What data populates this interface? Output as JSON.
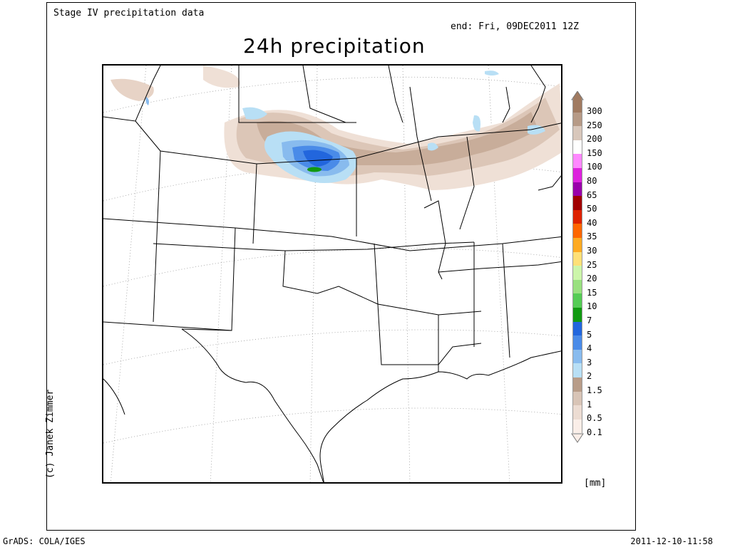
{
  "header": {
    "source": "Stage IV precipitation data",
    "end": "end: Fri, 09DEC2011 12Z",
    "title": "24h precipitation"
  },
  "credit": "(c) Janek Zimmer",
  "footer": {
    "left": "GrADS: COLA/IGES",
    "right": "2011-12-10-11:58"
  },
  "legend": {
    "unit": "[mm]",
    "levels": [
      {
        "label": "300",
        "color": "#a07a60"
      },
      {
        "label": "250",
        "color": "#b69a86"
      },
      {
        "label": "200",
        "color": "#d8c7bb"
      },
      {
        "label": "150",
        "color": "#ffffff"
      },
      {
        "label": "100",
        "color": "#ff88ff"
      },
      {
        "label": "80",
        "color": "#dd22dd"
      },
      {
        "label": "65",
        "color": "#9900aa"
      },
      {
        "label": "50",
        "color": "#a00000"
      },
      {
        "label": "40",
        "color": "#dd2200"
      },
      {
        "label": "35",
        "color": "#ff6600"
      },
      {
        "label": "30",
        "color": "#ffaa22"
      },
      {
        "label": "25",
        "color": "#ffe077"
      },
      {
        "label": "20",
        "color": "#ccf5aa"
      },
      {
        "label": "15",
        "color": "#99e07f"
      },
      {
        "label": "10",
        "color": "#55cc55"
      },
      {
        "label": "7",
        "color": "#119911"
      },
      {
        "label": "5",
        "color": "#2266dd"
      },
      {
        "label": "4",
        "color": "#4a8be8"
      },
      {
        "label": "3",
        "color": "#88bbee"
      },
      {
        "label": "2",
        "color": "#b8dff5"
      },
      {
        "label": "1.5",
        "color": "#b89c88"
      },
      {
        "label": "1",
        "color": "#d8c4b6"
      },
      {
        "label": "0.5",
        "color": "#ecdcd2"
      },
      {
        "label": "0.1",
        "color": "#faeee8"
      }
    ]
  }
}
